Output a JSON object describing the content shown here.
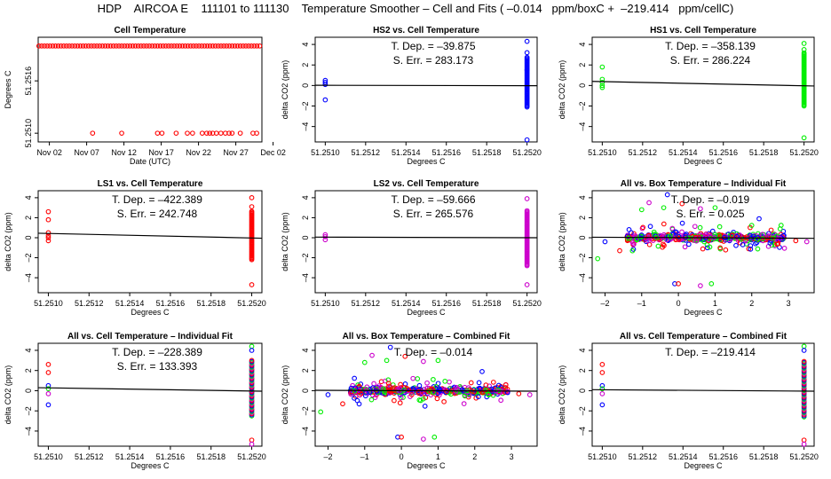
{
  "figure": {
    "title": "HDP    AIRCOA E    111101 to 111130    Temperature Smoother – Cell and Fits ( –0.014   ppm/boxC +  –219.414   ppm/cellC)"
  },
  "colors": {
    "red": "#ff0000",
    "blue": "#0000ff",
    "green": "#00ee00",
    "magenta": "#cc00cc",
    "black": "#000000"
  },
  "chart_data": [
    {
      "id": "cell-temp",
      "type": "scatter",
      "title": "Cell Temperature",
      "xlabel": "Date (UTC)",
      "ylabel": "Degrees C",
      "xlim": [
        0,
        30
      ],
      "ylim": [
        51.2509,
        51.2521
      ],
      "xticks": [
        {
          "v": 1.5,
          "label": "Nov 02"
        },
        {
          "v": 6.5,
          "label": "Nov 07"
        },
        {
          "v": 11.5,
          "label": "Nov 12"
        },
        {
          "v": 16.5,
          "label": "Nov 17"
        },
        {
          "v": 21.5,
          "label": "Nov 22"
        },
        {
          "v": 26.5,
          "label": "Nov 27"
        },
        {
          "v": 31.5,
          "label": "Dec 02"
        }
      ],
      "yticks": [
        {
          "v": 51.251,
          "label": "51.2510"
        },
        {
          "v": 51.2516,
          "label": "51.2516"
        }
      ],
      "series": [
        {
          "name": "cell",
          "color": "red",
          "upper": 51.252,
          "lower": 51.251,
          "lower_x": [
            7.3,
            11.2,
            16.0,
            16.6,
            18.5,
            20.0,
            20.7,
            22.0,
            22.6,
            23.0,
            23.4,
            23.9,
            24.5,
            25.1,
            25.6,
            26.0,
            27.1,
            28.8,
            29.3
          ]
        }
      ]
    },
    {
      "id": "hs2-vs-cell",
      "type": "scatter",
      "title": "HS2 vs. Cell Temperature",
      "xlabel": "Degrees C",
      "ylabel": "delta CO2 (ppm)",
      "xlim": [
        51.25095,
        51.25205
      ],
      "ylim": [
        -5.5,
        4.7
      ],
      "xticks": [
        {
          "v": 51.251,
          "label": "51.2510"
        },
        {
          "v": 51.2512,
          "label": "51.2512"
        },
        {
          "v": 51.2514,
          "label": "51.2514"
        },
        {
          "v": 51.2516,
          "label": "51.2516"
        },
        {
          "v": 51.2518,
          "label": "51.2518"
        },
        {
          "v": 51.252,
          "label": "51.2520"
        }
      ],
      "yticks": [
        -4,
        -2,
        0,
        2,
        4
      ],
      "stats": [
        "T. Dep. =  –39.875",
        "S. Err. =  283.173"
      ],
      "fit": {
        "x": [
          51.25095,
          51.25205
        ],
        "y": [
          0.02,
          -0.02
        ]
      },
      "series": [
        {
          "name": "HS2",
          "color": "blue",
          "left": {
            "x": 51.251,
            "y": [
              0.5,
              0.3,
              0.1,
              -1.4
            ]
          },
          "right": {
            "x": 51.252,
            "lo": -2.1,
            "hi": 2.8,
            "extra": [
              4.3,
              3.2,
              1.5,
              -5.3
            ]
          }
        }
      ]
    },
    {
      "id": "hs1-vs-cell",
      "type": "scatter",
      "title": "HS1 vs. Cell Temperature",
      "xlabel": "Degrees C",
      "ylabel": "delta CO2 (ppm)",
      "xlim": [
        51.25095,
        51.25205
      ],
      "ylim": [
        -5.5,
        4.7
      ],
      "xticks": [
        {
          "v": 51.251,
          "label": "51.2510"
        },
        {
          "v": 51.2512,
          "label": "51.2512"
        },
        {
          "v": 51.2514,
          "label": "51.2514"
        },
        {
          "v": 51.2516,
          "label": "51.2516"
        },
        {
          "v": 51.2518,
          "label": "51.2518"
        },
        {
          "v": 51.252,
          "label": "51.2520"
        }
      ],
      "yticks": [
        -4,
        -2,
        0,
        2,
        4
      ],
      "stats": [
        "T. Dep. =  –358.139",
        "S. Err. =  286.224"
      ],
      "fit": {
        "x": [
          51.25095,
          51.25205
        ],
        "y": [
          0.4,
          -0.05
        ]
      },
      "series": [
        {
          "name": "HS1",
          "color": "green",
          "left": {
            "x": 51.251,
            "y": [
              1.8,
              0.6,
              0.3,
              0.0,
              -0.2
            ]
          },
          "right": {
            "x": 51.252,
            "lo": -2.0,
            "hi": 3.2,
            "extra": [
              4.1,
              3.5,
              -5.1
            ]
          }
        }
      ]
    },
    {
      "id": "ls1-vs-cell",
      "type": "scatter",
      "title": "LS1 vs. Cell Temperature",
      "xlabel": "Degrees C",
      "ylabel": "delta CO2 (ppm)",
      "xlim": [
        51.25095,
        51.25205
      ],
      "ylim": [
        -5.5,
        4.7
      ],
      "xticks": [
        {
          "v": 51.251,
          "label": "51.2510"
        },
        {
          "v": 51.2512,
          "label": "51.2512"
        },
        {
          "v": 51.2514,
          "label": "51.2514"
        },
        {
          "v": 51.2516,
          "label": "51.2516"
        },
        {
          "v": 51.2518,
          "label": "51.2518"
        },
        {
          "v": 51.252,
          "label": "51.2520"
        }
      ],
      "yticks": [
        -4,
        -2,
        0,
        2,
        4
      ],
      "stats": [
        "T. Dep. =  –422.389",
        "S. Err. =  242.748"
      ],
      "fit": {
        "x": [
          51.25095,
          51.25205
        ],
        "y": [
          0.45,
          -0.05
        ]
      },
      "series": [
        {
          "name": "LS1",
          "color": "red",
          "left": {
            "x": 51.251,
            "y": [
              2.6,
              1.8,
              0.5,
              0.2,
              0.0,
              -0.3
            ]
          },
          "right": {
            "x": 51.252,
            "lo": -2.2,
            "hi": 2.7,
            "extra": [
              4.0,
              3.1,
              -4.7
            ]
          }
        }
      ]
    },
    {
      "id": "ls2-vs-cell",
      "type": "scatter",
      "title": "LS2 vs. Cell Temperature",
      "xlabel": "Degrees C",
      "ylabel": "delta CO2 (ppm)",
      "xlim": [
        51.25095,
        51.25205
      ],
      "ylim": [
        -5.5,
        4.7
      ],
      "xticks": [
        {
          "v": 51.251,
          "label": "51.2510"
        },
        {
          "v": 51.2512,
          "label": "51.2512"
        },
        {
          "v": 51.2514,
          "label": "51.2514"
        },
        {
          "v": 51.2516,
          "label": "51.2516"
        },
        {
          "v": 51.2518,
          "label": "51.2518"
        },
        {
          "v": 51.252,
          "label": "51.2520"
        }
      ],
      "yticks": [
        -4,
        -2,
        0,
        2,
        4
      ],
      "stats": [
        "T. Dep. =  –59.666",
        "S. Err. =  265.576"
      ],
      "fit": {
        "x": [
          51.25095,
          51.25205
        ],
        "y": [
          0.06,
          0.0
        ]
      },
      "series": [
        {
          "name": "LS2",
          "color": "magenta",
          "left": {
            "x": 51.251,
            "y": [
              0.3,
              0.1,
              -0.2
            ]
          },
          "right": {
            "x": 51.252,
            "lo": -2.8,
            "hi": 2.8,
            "extra": [
              3.9,
              -4.7
            ]
          }
        }
      ]
    },
    {
      "id": "all-vs-box-individual",
      "type": "scatter",
      "title": "All vs. Box Temperature – Individual Fit",
      "xlabel": "Degrees C",
      "ylabel": "delta CO2 (ppm)",
      "xlim": [
        -2.35,
        3.7
      ],
      "ylim": [
        -5.5,
        4.7
      ],
      "xticks": [
        {
          "v": -2,
          "label": "–2"
        },
        {
          "v": -1,
          "label": "–1"
        },
        {
          "v": 0,
          "label": "0"
        },
        {
          "v": 1,
          "label": "1"
        },
        {
          "v": 2,
          "label": "2"
        },
        {
          "v": 3,
          "label": "3"
        }
      ],
      "yticks": [
        -4,
        -2,
        0,
        2,
        4
      ],
      "stats": [
        "T. Dep. =  –0.019",
        "S. Err. =  0.025"
      ],
      "fit": {
        "x": [
          -2.35,
          3.7
        ],
        "y": [
          0.05,
          -0.06
        ]
      },
      "cloud": {
        "xmin": -1.4,
        "xmax": 2.9,
        "core": 0.45,
        "spread": 1.8,
        "outliers": [
          [
            -2.2,
            -2.1
          ],
          [
            -2.0,
            -0.4
          ],
          [
            -1.6,
            -1.3
          ],
          [
            -0.8,
            3.5
          ],
          [
            -0.4,
            3.0
          ],
          [
            -0.3,
            4.3
          ],
          [
            0.1,
            3.4
          ],
          [
            0.6,
            2.9
          ],
          [
            1.0,
            3.0
          ],
          [
            -0.1,
            -4.6
          ],
          [
            0.0,
            -4.6
          ],
          [
            0.6,
            -4.8
          ],
          [
            0.9,
            -4.6
          ],
          [
            2.2,
            1.9
          ],
          [
            3.2,
            -0.3
          ],
          [
            3.5,
            -0.4
          ],
          [
            -1.0,
            2.8
          ],
          [
            2.1,
            -0.6
          ]
        ]
      },
      "series": [
        {
          "name": "HS1",
          "color": "green"
        },
        {
          "name": "HS2",
          "color": "blue"
        },
        {
          "name": "LS1",
          "color": "red"
        },
        {
          "name": "LS2",
          "color": "magenta"
        }
      ]
    },
    {
      "id": "all-vs-cell-individual",
      "type": "scatter",
      "title": "All vs. Cell Temperature – Individual Fit",
      "xlabel": "Degrees C",
      "ylabel": "delta CO2 (ppm)",
      "xlim": [
        51.25095,
        51.25205
      ],
      "ylim": [
        -5.5,
        4.7
      ],
      "xticks": [
        {
          "v": 51.251,
          "label": "51.2510"
        },
        {
          "v": 51.2512,
          "label": "51.2512"
        },
        {
          "v": 51.2514,
          "label": "51.2514"
        },
        {
          "v": 51.2516,
          "label": "51.2516"
        },
        {
          "v": 51.2518,
          "label": "51.2518"
        },
        {
          "v": 51.252,
          "label": "51.2520"
        }
      ],
      "yticks": [
        -4,
        -2,
        0,
        2,
        4
      ],
      "stats": [
        "T. Dep. =  –228.389",
        "S. Err. =  133.393"
      ],
      "fit": {
        "x": [
          51.25095,
          51.25205
        ],
        "y": [
          0.3,
          -0.05
        ]
      },
      "series": [
        {
          "name": "all",
          "color": "magenta",
          "left": {
            "x": 51.251,
            "y": [
              2.6,
              1.8,
              0.5,
              0.2,
              -0.3,
              -1.4
            ],
            "colors": [
              "red",
              "red",
              "blue",
              "green",
              "magenta",
              "blue"
            ]
          },
          "right": {
            "x": 51.252,
            "lo": -2.5,
            "hi": 3.0,
            "extra": [
              4.4,
              4.0,
              -4.9,
              -5.3
            ]
          }
        }
      ]
    },
    {
      "id": "all-vs-box-combined",
      "type": "scatter",
      "title": "All vs. Box Temperature – Combined Fit",
      "xlabel": "Degrees C",
      "ylabel": "delta CO2 (ppm)",
      "xlim": [
        -2.35,
        3.7
      ],
      "ylim": [
        -5.5,
        4.7
      ],
      "xticks": [
        {
          "v": -2,
          "label": "–2"
        },
        {
          "v": -1,
          "label": "–1"
        },
        {
          "v": 0,
          "label": "0"
        },
        {
          "v": 1,
          "label": "1"
        },
        {
          "v": 2,
          "label": "2"
        },
        {
          "v": 3,
          "label": "3"
        }
      ],
      "yticks": [
        -4,
        -2,
        0,
        2,
        4
      ],
      "stats": [
        "T. Dep. =  –0.014"
      ],
      "fit": {
        "x": [
          -2.35,
          3.7
        ],
        "y": [
          0.04,
          -0.05
        ]
      },
      "cloud": {
        "xmin": -1.4,
        "xmax": 2.9,
        "core": 0.45,
        "spread": 1.8,
        "outliers": [
          [
            -2.2,
            -2.1
          ],
          [
            -2.0,
            -0.4
          ],
          [
            -1.6,
            -1.3
          ],
          [
            -0.8,
            3.5
          ],
          [
            -0.4,
            3.0
          ],
          [
            -0.3,
            4.3
          ],
          [
            0.1,
            3.4
          ],
          [
            0.6,
            2.9
          ],
          [
            1.0,
            3.0
          ],
          [
            -0.1,
            -4.6
          ],
          [
            0.0,
            -4.6
          ],
          [
            0.6,
            -4.8
          ],
          [
            0.9,
            -4.6
          ],
          [
            2.2,
            1.9
          ],
          [
            3.2,
            -0.3
          ],
          [
            3.5,
            -0.4
          ],
          [
            -1.0,
            2.8
          ],
          [
            2.1,
            -0.6
          ]
        ]
      },
      "series": [
        {
          "name": "HS1",
          "color": "green"
        },
        {
          "name": "HS2",
          "color": "blue"
        },
        {
          "name": "LS1",
          "color": "red"
        },
        {
          "name": "LS2",
          "color": "magenta"
        }
      ]
    },
    {
      "id": "all-vs-cell-combined",
      "type": "scatter",
      "title": "All vs. Cell Temperature – Combined Fit",
      "xlabel": "Degrees C",
      "ylabel": "delta CO2 (ppm)",
      "xlim": [
        51.25095,
        51.25205
      ],
      "ylim": [
        -5.5,
        4.7
      ],
      "xticks": [
        {
          "v": 51.251,
          "label": "51.2510"
        },
        {
          "v": 51.2512,
          "label": "51.2512"
        },
        {
          "v": 51.2514,
          "label": "51.2514"
        },
        {
          "v": 51.2516,
          "label": "51.2516"
        },
        {
          "v": 51.2518,
          "label": "51.2518"
        },
        {
          "v": 51.252,
          "label": "51.2520"
        }
      ],
      "yticks": [
        -4,
        -2,
        0,
        2,
        4
      ],
      "stats": [
        "T. Dep. =  –219.414"
      ],
      "fit": {
        "x": [
          51.25095,
          51.25205
        ],
        "y": [
          0.1,
          -0.05
        ]
      },
      "series": [
        {
          "name": "all",
          "color": "magenta",
          "left": {
            "x": 51.251,
            "y": [
              2.6,
              1.8,
              0.5,
              0.2,
              -0.3,
              -1.4
            ],
            "colors": [
              "red",
              "red",
              "blue",
              "green",
              "magenta",
              "blue"
            ]
          },
          "right": {
            "x": 51.252,
            "lo": -2.6,
            "hi": 3.0,
            "extra": [
              4.4,
              4.0,
              -4.9,
              -5.3
            ]
          }
        }
      ]
    }
  ]
}
